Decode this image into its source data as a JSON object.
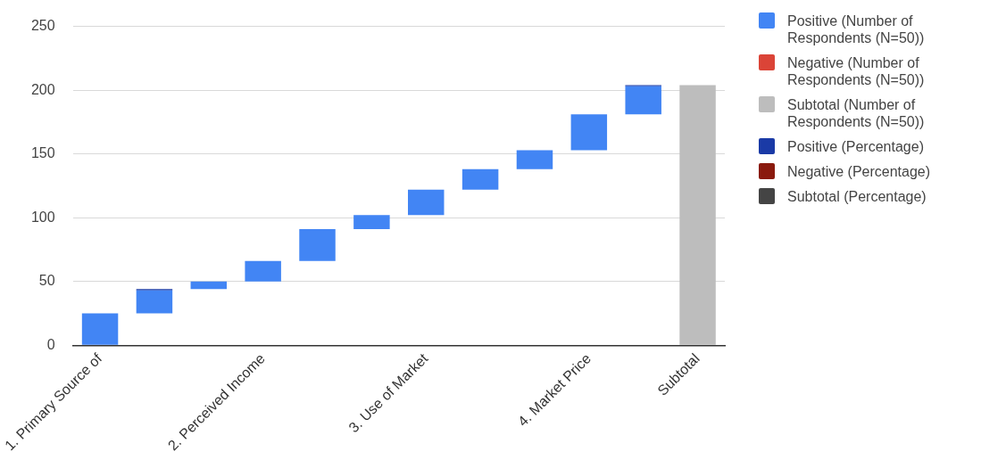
{
  "chart_data": {
    "type": "bar",
    "categories": [
      "1. Primary Source of",
      null,
      null,
      "2. Perceived Income",
      null,
      null,
      "3. Use of Market",
      null,
      null,
      "4. Market Price",
      null,
      "Subtotal"
    ],
    "series": [
      {
        "name": "Positive (Number of Respondents (N=50))",
        "color": "#4285f4",
        "values": [
          25,
          18,
          6,
          16,
          25,
          11,
          20,
          16,
          15,
          28,
          22,
          null
        ],
        "base": [
          0,
          25,
          44,
          50,
          66,
          91,
          102,
          122,
          138,
          153,
          181,
          null
        ]
      },
      {
        "name": "Negative (Number of Respondents (N=50))",
        "color": "#db4437",
        "values": [
          null,
          null,
          null,
          null,
          null,
          null,
          null,
          null,
          null,
          null,
          null,
          null
        ]
      },
      {
        "name": "Subtotal (Number of Respondents (N=50))",
        "color": "#bdbdbd",
        "values": [
          null,
          null,
          null,
          null,
          null,
          null,
          null,
          null,
          null,
          null,
          null,
          204
        ],
        "base": [
          null,
          null,
          null,
          null,
          null,
          null,
          null,
          null,
          null,
          null,
          null,
          0
        ]
      },
      {
        "name": "Positive (Percentage)",
        "color": "#1a3aa6",
        "values": [
          null,
          1,
          null,
          null,
          null,
          null,
          null,
          null,
          null,
          null,
          1,
          null
        ],
        "base": [
          null,
          43,
          null,
          null,
          null,
          null,
          null,
          null,
          null,
          null,
          203,
          null
        ]
      },
      {
        "name": "Negative (Percentage)",
        "color": "#8a1a0e",
        "values": [
          null,
          null,
          null,
          null,
          null,
          null,
          null,
          null,
          null,
          null,
          null,
          null
        ]
      },
      {
        "name": "Subtotal (Percentage)",
        "color": "#444444",
        "values": [
          null,
          null,
          null,
          null,
          null,
          null,
          null,
          null,
          null,
          null,
          null,
          null
        ]
      }
    ],
    "ylim": [
      0,
      250
    ],
    "yticks": [
      0,
      50,
      100,
      150,
      200,
      250
    ],
    "grid": "y",
    "legend": "right"
  }
}
